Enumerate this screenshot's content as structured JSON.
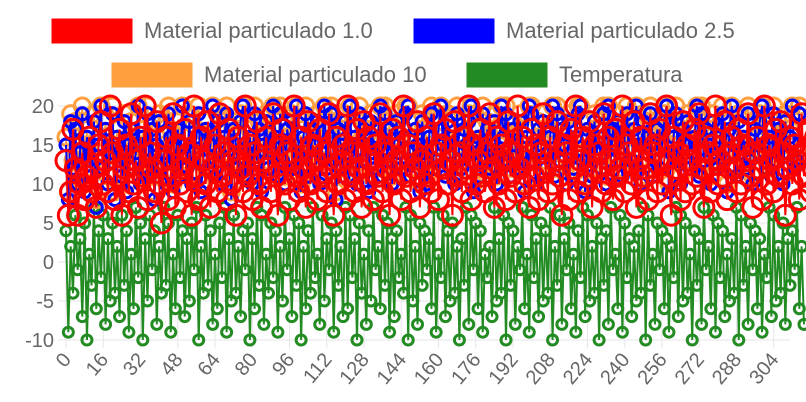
{
  "chart_data": {
    "type": "line",
    "title": "",
    "xlabel": "",
    "ylabel": "",
    "ylim": [
      -10,
      20
    ],
    "y_ticks": [
      -10,
      -5,
      0,
      5,
      10,
      15,
      20
    ],
    "x_ticks": [
      0,
      16,
      32,
      48,
      64,
      80,
      96,
      112,
      128,
      144,
      160,
      176,
      192,
      208,
      224,
      240,
      256,
      272,
      288,
      304
    ],
    "x_count": 312,
    "grid": true,
    "legend_position": "top",
    "series": [
      {
        "name": "Material particulado 1.0",
        "color": "#ff0000",
        "values": [
          13,
          6,
          9,
          17,
          12,
          6,
          10,
          14,
          8,
          11,
          16,
          9,
          12,
          7,
          15,
          18,
          10,
          13,
          9,
          20,
          14,
          8,
          11,
          17,
          6,
          12,
          15,
          9,
          19,
          10,
          13,
          7,
          16,
          11,
          20,
          8,
          14,
          12,
          9,
          18,
          10,
          5,
          13,
          16,
          8,
          11,
          19,
          7,
          15,
          10,
          12,
          17,
          9,
          14,
          6,
          20,
          11,
          8,
          16,
          13,
          10,
          18,
          7,
          12,
          15,
          9,
          19,
          11,
          14,
          8,
          17,
          10,
          13,
          6,
          16,
          12,
          9,
          20,
          11,
          15,
          8,
          14,
          18,
          10,
          7,
          13,
          16,
          12,
          9,
          19,
          11,
          6,
          15,
          17,
          10,
          14,
          8,
          13,
          20,
          11,
          9,
          16,
          12,
          7,
          18,
          10,
          15,
          13,
          8,
          17,
          11,
          14,
          9,
          19,
          12,
          6,
          16,
          10,
          13,
          15,
          8,
          20,
          11,
          14,
          9,
          17,
          12,
          7,
          18,
          10,
          16,
          13,
          8,
          15,
          11,
          19,
          9,
          14,
          12,
          6,
          17,
          10,
          13,
          16,
          8,
          20,
          11,
          15,
          9,
          14,
          12,
          18,
          7,
          13,
          10,
          16,
          11,
          9,
          19,
          14,
          8,
          15,
          12,
          17,
          10,
          13,
          6,
          18,
          11,
          14,
          9,
          16,
          12,
          20,
          8,
          15,
          10,
          13,
          17,
          11,
          9,
          14,
          19,
          12,
          7,
          16,
          10,
          15,
          13,
          8,
          18,
          11,
          14,
          9,
          20,
          12,
          16,
          10,
          13,
          7,
          17,
          11,
          15,
          8,
          14,
          19,
          12,
          9,
          16,
          10,
          13,
          18,
          11,
          6,
          15,
          14,
          8,
          17,
          12,
          20,
          9,
          13,
          16,
          10,
          11,
          18,
          7,
          15,
          12,
          14,
          9,
          19,
          10,
          16,
          13,
          8,
          17,
          11,
          12,
          20,
          9,
          15,
          14,
          10,
          18,
          7,
          13,
          16,
          11,
          12,
          8,
          19,
          14,
          15,
          9,
          17,
          10,
          13,
          20,
          11,
          6,
          16,
          12,
          14,
          8,
          18,
          9,
          15,
          13,
          10,
          17,
          11,
          19,
          12,
          7,
          16,
          14,
          9,
          15,
          20,
          10,
          13,
          11,
          18,
          8,
          14,
          16,
          12,
          9,
          17,
          10,
          15,
          13,
          19,
          11,
          7,
          14,
          16,
          12,
          8,
          20,
          10,
          15,
          13,
          9,
          17,
          11,
          18,
          14,
          6,
          12,
          16,
          10,
          15,
          13,
          8,
          19,
          11,
          14,
          17,
          9,
          12,
          16,
          10,
          8
        ],
        "radius": 10
      },
      {
        "name": "Material particulado 2.5",
        "color": "#0000ff",
        "values": [
          15,
          8,
          18,
          12,
          17,
          10,
          14,
          19,
          9,
          16,
          13,
          11,
          18,
          7,
          15,
          20,
          12,
          17,
          10,
          14,
          19,
          8,
          16,
          13,
          11,
          18,
          9,
          15,
          17,
          12,
          14,
          20,
          10,
          16,
          13,
          19,
          11,
          17,
          8,
          15,
          18,
          12,
          14,
          10,
          19,
          16,
          9,
          13,
          17,
          11,
          20,
          15,
          12,
          18,
          10,
          14,
          16,
          19,
          9,
          13,
          17,
          12,
          15,
          20,
          11,
          18,
          14,
          10,
          16,
          19,
          13,
          8,
          17,
          15,
          12,
          18,
          20,
          11,
          14,
          16,
          10,
          19,
          13,
          17,
          9,
          15,
          18,
          12,
          14,
          20,
          16,
          11,
          19,
          13,
          10,
          17,
          15,
          18,
          12,
          20,
          14,
          9,
          16,
          19,
          11,
          13,
          17,
          15,
          18,
          10,
          14,
          20,
          12,
          16,
          19,
          13,
          8,
          17,
          15,
          11,
          18,
          14,
          20,
          12,
          16,
          10,
          19,
          13,
          17,
          15,
          9,
          18,
          14,
          12,
          16,
          20,
          11,
          19,
          13,
          17,
          10,
          15,
          18,
          14,
          12,
          16,
          19,
          20,
          11,
          13,
          17,
          15,
          9,
          18,
          14,
          10,
          16,
          19,
          12,
          13,
          17,
          20,
          15,
          11,
          18,
          14,
          16,
          10,
          19,
          13,
          12,
          17,
          15,
          18,
          20,
          9,
          14,
          16,
          11,
          19,
          13,
          17,
          12,
          15,
          18,
          10,
          14,
          20,
          16,
          19,
          13,
          11,
          17,
          15,
          12,
          18,
          14,
          9,
          16,
          20,
          19,
          13,
          10,
          17,
          15,
          18,
          12,
          14,
          16,
          20,
          11,
          19,
          13,
          17,
          15,
          10,
          18,
          14,
          12,
          16,
          19,
          20,
          13,
          9,
          17,
          15,
          11,
          18,
          14,
          16,
          12,
          19,
          10,
          20,
          13,
          17,
          15,
          18,
          14,
          11,
          16,
          19,
          12,
          13,
          17,
          20,
          15,
          10,
          18,
          14,
          16,
          19,
          11,
          13,
          17,
          12,
          15,
          18,
          20,
          9,
          14,
          16,
          19,
          13,
          10,
          17,
          15,
          18,
          12,
          14,
          16,
          20,
          11,
          19,
          13,
          17,
          15,
          10,
          18,
          14,
          12,
          16,
          19,
          13,
          9,
          17,
          20,
          15,
          11,
          18,
          14,
          16,
          12,
          19,
          13,
          10,
          17,
          15,
          18,
          20,
          14,
          12,
          16,
          11,
          19,
          13,
          17,
          15,
          10,
          18,
          14,
          16,
          20,
          12,
          13,
          19
        ],
        "radius": 6
      },
      {
        "name": "Material particulado 10",
        "color": "#ff9f40",
        "values": [
          16,
          9,
          19,
          13,
          18,
          11,
          15,
          20,
          10,
          17,
          14,
          12,
          19,
          8,
          16,
          20,
          13,
          18,
          11,
          15,
          20,
          9,
          17,
          14,
          12,
          19,
          10,
          16,
          18,
          13,
          15,
          20,
          11,
          17,
          14,
          20,
          12,
          18,
          9,
          16,
          19,
          13,
          15,
          11,
          20,
          17,
          10,
          14,
          18,
          12,
          20,
          16,
          13,
          19,
          11,
          15,
          17,
          20,
          10,
          14,
          18,
          13,
          16,
          20,
          12,
          19,
          15,
          11,
          17,
          20,
          14,
          9,
          18,
          16,
          13,
          19,
          20,
          12,
          15,
          17,
          11,
          20,
          14,
          18,
          10,
          16,
          19,
          13,
          15,
          20,
          17,
          12,
          20,
          14,
          11,
          18,
          16,
          19,
          13,
          20,
          15,
          10,
          17,
          20,
          12,
          14,
          18,
          16,
          19,
          11,
          15,
          20,
          13,
          17,
          20,
          14,
          9,
          18,
          16,
          12,
          19,
          15,
          20,
          13,
          17,
          11,
          20,
          14,
          18,
          16,
          10,
          19,
          15,
          13,
          17,
          20,
          12,
          20,
          14,
          18,
          11,
          16,
          19,
          15,
          13,
          17,
          20,
          20,
          12,
          14,
          18,
          16,
          10,
          19,
          15,
          11,
          17,
          20,
          13,
          14,
          18,
          20,
          16,
          12,
          19,
          15,
          17,
          11,
          20,
          14,
          13,
          18,
          16,
          19,
          20,
          10,
          15,
          17,
          12,
          20,
          14,
          18,
          13,
          16,
          19,
          11,
          15,
          20,
          17,
          20,
          14,
          12,
          18,
          16,
          13,
          19,
          15,
          10,
          17,
          20,
          20,
          14,
          11,
          18,
          16,
          19,
          13,
          15,
          17,
          20,
          12,
          20,
          14,
          18,
          16,
          11,
          19,
          15,
          13,
          17,
          20,
          20,
          14,
          10,
          18,
          16,
          12,
          19,
          15,
          17,
          13,
          20,
          11,
          20,
          14,
          18,
          16,
          19,
          15,
          12,
          17,
          20,
          13,
          14,
          18,
          20,
          16,
          11,
          19,
          15,
          17,
          20,
          12,
          14,
          18,
          13,
          16,
          19,
          20,
          10,
          15,
          17,
          20,
          14,
          11,
          18,
          16,
          19,
          13,
          15,
          17,
          20,
          12,
          20,
          14,
          18,
          16,
          11,
          19,
          15,
          13,
          17,
          20,
          14,
          10,
          18,
          20,
          16,
          12,
          19,
          15,
          17,
          13,
          20,
          14,
          11,
          18,
          16,
          19,
          20,
          15,
          13,
          17,
          12,
          20,
          14,
          18,
          16,
          11,
          19,
          15,
          17,
          20,
          13,
          14,
          20
        ],
        "radius": 8
      },
      {
        "name": "Temperatura",
        "color": "#228b22",
        "values": [
          4,
          -9,
          2,
          -4,
          6,
          -1,
          3,
          -7,
          5,
          -10,
          1,
          -3,
          7,
          -6,
          4,
          -2,
          6,
          -8,
          3,
          -5,
          5,
          -4,
          2,
          -7,
          6,
          -3,
          4,
          -9,
          1,
          -6,
          7,
          -2,
          5,
          -10,
          3,
          -5,
          6,
          -1,
          4,
          -8,
          2,
          -4,
          7,
          -3,
          5,
          -9,
          1,
          -6,
          6,
          -2,
          4,
          -7,
          3,
          -5,
          5,
          -1,
          7,
          -10,
          2,
          -4,
          6,
          -3,
          4,
          -8,
          1,
          -6,
          5,
          -2,
          7,
          -9,
          3,
          -5,
          6,
          -4,
          2,
          -7,
          4,
          -1,
          5,
          -10,
          3,
          -6,
          7,
          -3,
          6,
          -8,
          1,
          -4,
          5,
          -2,
          4,
          -9,
          2,
          -5,
          7,
          -1,
          3,
          -7,
          6,
          -3,
          5,
          -10,
          2,
          -6,
          4,
          -4,
          7,
          -2,
          1,
          -8,
          6,
          -5,
          3,
          -1,
          5,
          -9,
          4,
          -3,
          2,
          -7,
          7,
          -6,
          6,
          -2,
          3,
          -10,
          5,
          -4,
          1,
          -8,
          4,
          -5,
          7,
          -1,
          2,
          -6,
          6,
          -3,
          5,
          -9,
          3,
          -7,
          4,
          -2,
          1,
          -4,
          7,
          -10,
          6,
          -5,
          2,
          -8,
          5,
          -3,
          4,
          -1,
          3,
          -6,
          7,
          -9,
          1,
          -2,
          6,
          -7,
          4,
          -5,
          5,
          -4,
          2,
          -10,
          3,
          -3,
          7,
          -8,
          6,
          -1,
          5,
          -6,
          4,
          -9,
          1,
          -2,
          2,
          -7,
          7,
          -5,
          3,
          -4,
          6,
          -10,
          5,
          -3,
          4,
          -8,
          2,
          -1,
          7,
          -6,
          1,
          -9,
          6,
          -2,
          3,
          -7,
          5,
          -5,
          4,
          -4,
          7,
          -10,
          2,
          -3,
          6,
          -8,
          3,
          -1,
          5,
          -6,
          1,
          -9,
          4,
          -2,
          7,
          -7,
          6,
          -5,
          2,
          -4,
          5,
          -10,
          3,
          -3,
          4,
          -8,
          7,
          -1,
          1,
          -6,
          6,
          -9,
          5,
          -2,
          3,
          -7,
          2,
          -5,
          4,
          -4,
          7,
          -10,
          6,
          -3,
          1,
          -8,
          5,
          -1,
          4,
          -6,
          3,
          -9,
          2,
          -2,
          7,
          -7,
          6,
          -5,
          5,
          -4,
          1,
          -10,
          4,
          -3,
          3,
          -8,
          7,
          -1,
          2,
          -6,
          6,
          -9,
          5,
          -2,
          4,
          -7,
          1,
          -5,
          3,
          -4,
          7,
          -10,
          6,
          -3,
          2,
          -8,
          5,
          -1,
          4,
          -6,
          3,
          -9,
          1,
          -2,
          7,
          -7,
          6,
          -5,
          2,
          -4,
          5,
          -8,
          3,
          -3,
          4,
          -1,
          7,
          -6,
          2,
          -8
        ],
        "radius": 5
      }
    ]
  }
}
